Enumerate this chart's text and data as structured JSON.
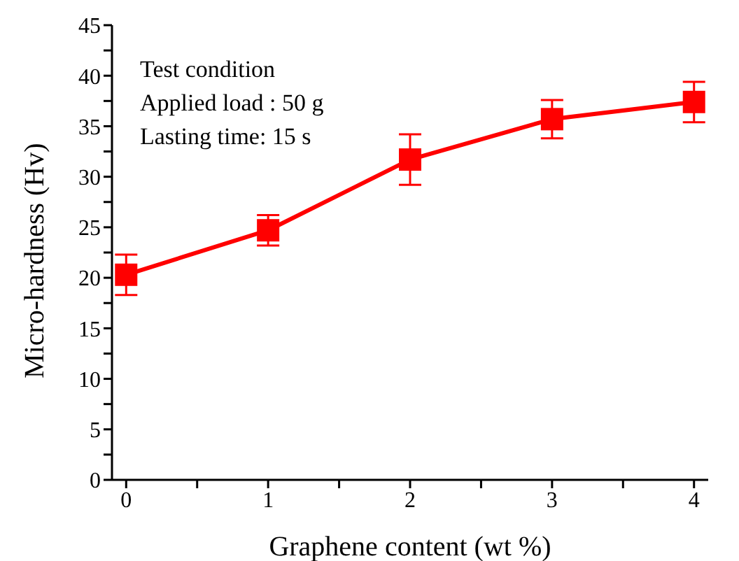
{
  "chart_data": {
    "type": "line",
    "xlabel": "Graphene content  (wt %)",
    "ylabel": "Micro-hardness (Hv)",
    "annotations": [
      "Test condition",
      "Applied load : 50 g",
      "Lasting time: 15 s"
    ],
    "x": [
      0,
      1,
      2,
      3,
      4
    ],
    "series": [
      {
        "color": "#ff0000",
        "values": [
          20.3,
          24.7,
          31.7,
          35.7,
          37.4
        ],
        "errors": [
          2.0,
          1.5,
          2.5,
          1.9,
          2.0
        ]
      }
    ],
    "xlim": [
      -0.1,
      4.1
    ],
    "xticks": [
      0,
      {
        "value": 0.5,
        "label": null
      },
      1,
      {
        "value": 1.5,
        "label": null
      },
      2,
      {
        "value": 2.5,
        "label": null
      },
      3,
      {
        "value": 3.5,
        "label": null
      },
      4
    ],
    "ylim": [
      0,
      45
    ],
    "yticks": [
      0,
      {
        "value": 2.5,
        "label": null
      },
      5,
      {
        "value": 7.5,
        "label": null
      },
      10,
      {
        "value": 12.5,
        "label": null
      },
      15,
      {
        "value": 17.5,
        "label": null
      },
      20,
      {
        "value": 22.5,
        "label": null
      },
      25,
      {
        "value": 27.5,
        "label": null
      },
      30,
      {
        "value": 32.5,
        "label": null
      },
      35,
      {
        "value": 37.5,
        "label": null
      },
      40,
      {
        "value": 42.5,
        "label": null
      },
      45
    ],
    "grid": false,
    "marker": "square",
    "line_style": "solid",
    "legend": false
  }
}
